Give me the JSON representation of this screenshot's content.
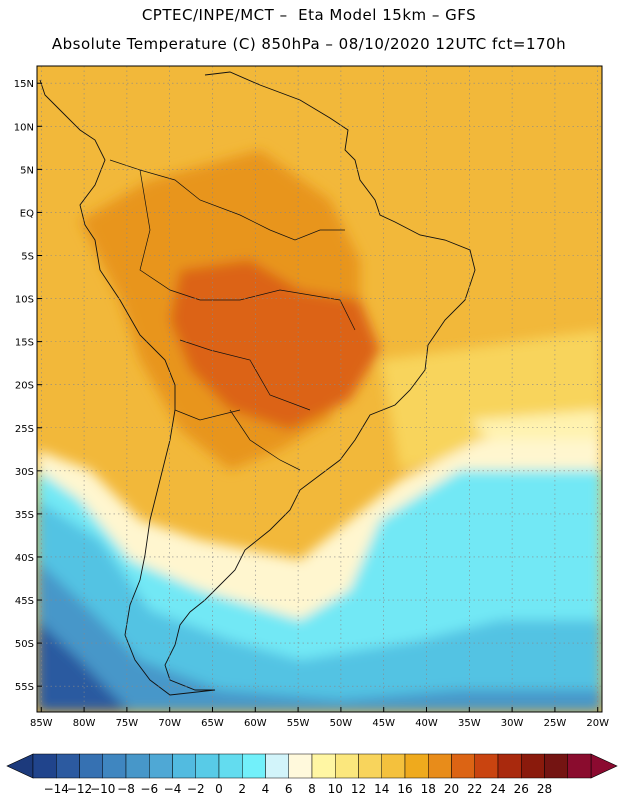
{
  "header": {
    "title_line1": "CPTEC/INPE/MCT –  Eta Model 15km – GFS",
    "title_line2": "Absolute Temperature (C) 850hPa – 08/10/2020 12UTC fct=170h"
  },
  "map": {
    "lat_labels": [
      "15N",
      "10N",
      "5N",
      "EQ",
      "5S",
      "10S",
      "15S",
      "20S",
      "25S",
      "30S",
      "35S",
      "40S",
      "45S",
      "50S",
      "55S"
    ],
    "lat_values": [
      15,
      10,
      5,
      0,
      -5,
      -10,
      -15,
      -20,
      -25,
      -30,
      -35,
      -40,
      -45,
      -50,
      -55
    ],
    "lon_labels": [
      "85W",
      "80W",
      "75W",
      "70W",
      "65W",
      "60W",
      "55W",
      "50W",
      "45W",
      "40W",
      "35W",
      "30W",
      "25W",
      "20W"
    ],
    "lon_values": [
      -85,
      -80,
      -75,
      -70,
      -65,
      -60,
      -55,
      -50,
      -45,
      -40,
      -35,
      -30,
      -25,
      -20
    ],
    "extent": {
      "lon_min": -85.5,
      "lon_max": -19.5,
      "lat_min": -58,
      "lat_max": 17
    }
  },
  "colorbar": {
    "labels": [
      "-14",
      "-12",
      "-10",
      "-8",
      "-6",
      "-4",
      "-2",
      "0",
      "2",
      "4",
      "6",
      "8",
      "10",
      "12",
      "14",
      "16",
      "18",
      "20",
      "22",
      "24",
      "26",
      "28"
    ],
    "colors": [
      "#20448c",
      "#2c5aa0",
      "#3671b2",
      "#3f86c0",
      "#4797c9",
      "#4fa8d5",
      "#52bbe0",
      "#58cbe7",
      "#63dcef",
      "#72f0fa",
      "#d2f4fa",
      "#fff9dc",
      "#fff6a3",
      "#fbe77d",
      "#f8d45c",
      "#f4c13d",
      "#efaa1d",
      "#e88c1a",
      "#dc6414",
      "#c94410",
      "#a9290d",
      "#8a1a0c",
      "#741412",
      "#8a0c2e"
    ],
    "under_color": "#1c3a7c",
    "over_color": "#8b0a30"
  }
}
